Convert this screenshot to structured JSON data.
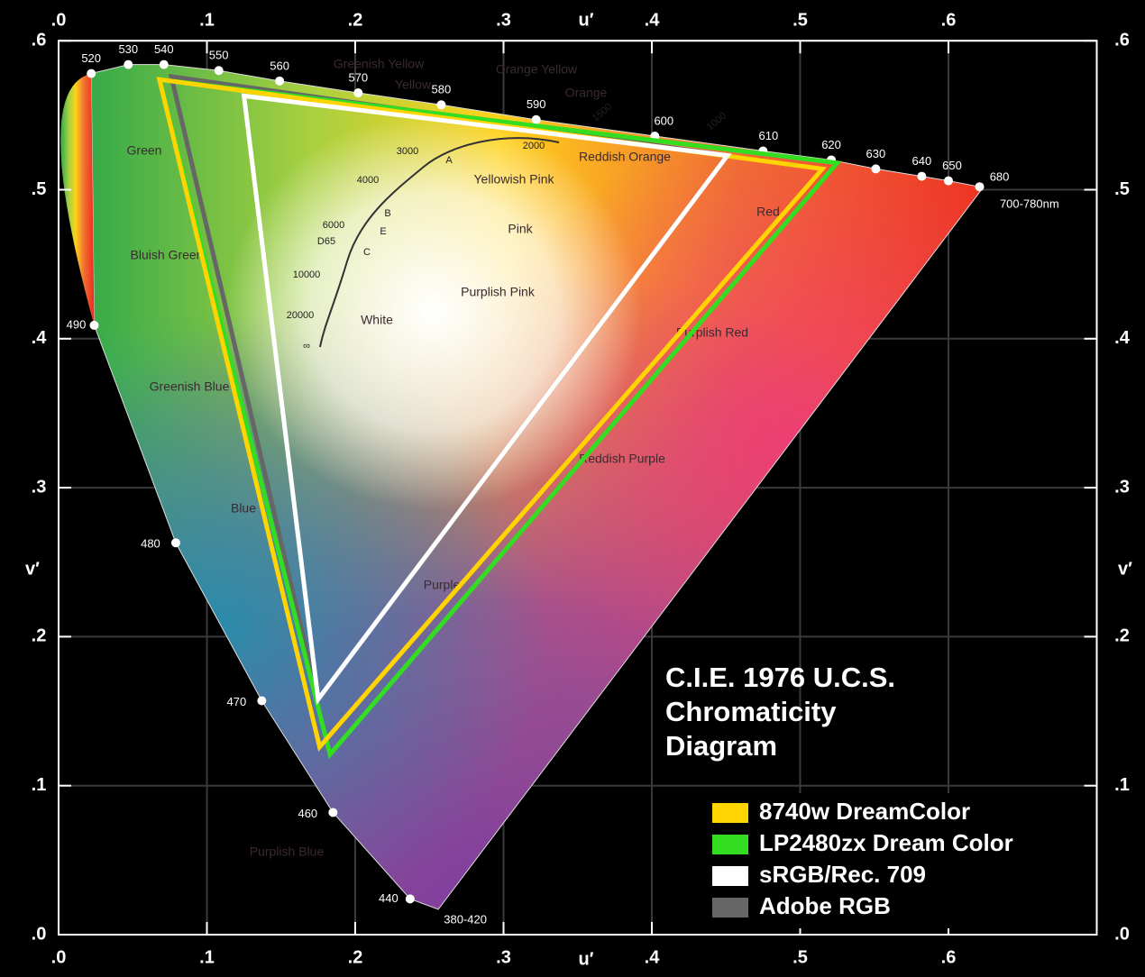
{
  "chart_data": {
    "type": "gamut",
    "title": "C.I.E. 1976 U.C.S. Chromaticity Diagram",
    "x_label": "u′",
    "y_label": "v′",
    "xlim": [
      0,
      0.7
    ],
    "ylim": [
      0,
      0.6
    ],
    "xticks": [
      {
        "value": 0,
        "label": ".0"
      },
      {
        "value": 0.1,
        "label": ".1"
      },
      {
        "value": 0.2,
        "label": ".2"
      },
      {
        "value": 0.3,
        "label": ".3"
      },
      {
        "value": 0.4,
        "label": ".4"
      },
      {
        "value": 0.5,
        "label": ".5"
      },
      {
        "value": 0.6,
        "label": ".6"
      }
    ],
    "yticks": [
      {
        "value": 0,
        "label": ".0"
      },
      {
        "value": 0.1,
        "label": ".1"
      },
      {
        "value": 0.2,
        "label": ".2"
      },
      {
        "value": 0.3,
        "label": ".3"
      },
      {
        "value": 0.4,
        "label": ".4"
      },
      {
        "value": 0.5,
        "label": ".5"
      },
      {
        "value": 0.6,
        "label": ".6"
      }
    ],
    "grid": true,
    "legend": "lower right",
    "locus": {
      "labels": [
        "380-420",
        "440",
        "460",
        "470",
        "480",
        "490",
        "520",
        "530",
        "540",
        "550",
        "560",
        "570",
        "580",
        "590",
        "600",
        "610",
        "620",
        "630",
        "640",
        "650",
        "680",
        "700-780nm"
      ],
      "x": [
        0.256,
        0.237,
        0.185,
        0.137,
        0.079,
        0.024,
        0.022,
        0.047,
        0.071,
        0.108,
        0.149,
        0.202,
        0.258,
        0.322,
        0.402,
        0.475,
        0.521,
        0.551,
        0.582,
        0.6,
        0.621,
        0.623
      ],
      "y": [
        0.017,
        0.024,
        0.082,
        0.157,
        0.263,
        0.409,
        0.578,
        0.584,
        0.584,
        0.58,
        0.573,
        0.565,
        0.557,
        0.547,
        0.536,
        0.526,
        0.52,
        0.514,
        0.509,
        0.506,
        0.502,
        0.501
      ]
    },
    "regions": [
      "Green",
      "Greenish Yellow",
      "Yellow",
      "Orange Yellow",
      "Orange",
      "Reddish Orange",
      "Yellowish Pink",
      "Pink",
      "Red",
      "Purplish Pink",
      "Purplish Red",
      "Reddish Purple",
      "Purple",
      "Bluish Green",
      "Greenish Blue",
      "Blue",
      "White",
      "Purplish Blue"
    ],
    "planckian_labels": [
      "1000",
      "1500",
      "2000",
      "3000",
      "4000",
      "6000",
      "10000",
      "20000",
      "∞"
    ],
    "illuminants": [
      "A",
      "B",
      "E",
      "C",
      "D65"
    ],
    "series": [
      {
        "name": "8740w DreamColor",
        "color": "#ffd400",
        "x": [
          0.068,
          0.515,
          0.176
        ],
        "values": [
          0.574,
          0.514,
          0.126
        ]
      },
      {
        "name": "LP2480zx Dream Color",
        "color": "#33dd22",
        "x": [
          0.068,
          0.525,
          0.183
        ],
        "values": [
          0.574,
          0.518,
          0.121
        ]
      },
      {
        "name": "sRGB/Rec. 709",
        "color": "#ffffff",
        "x": [
          0.125,
          0.451,
          0.175
        ],
        "values": [
          0.563,
          0.523,
          0.158
        ]
      },
      {
        "name": "Adobe RGB",
        "color": "#666666",
        "x": [
          0.076,
          0.451,
          0.175
        ],
        "values": [
          0.576,
          0.523,
          0.158
        ]
      }
    ]
  }
}
